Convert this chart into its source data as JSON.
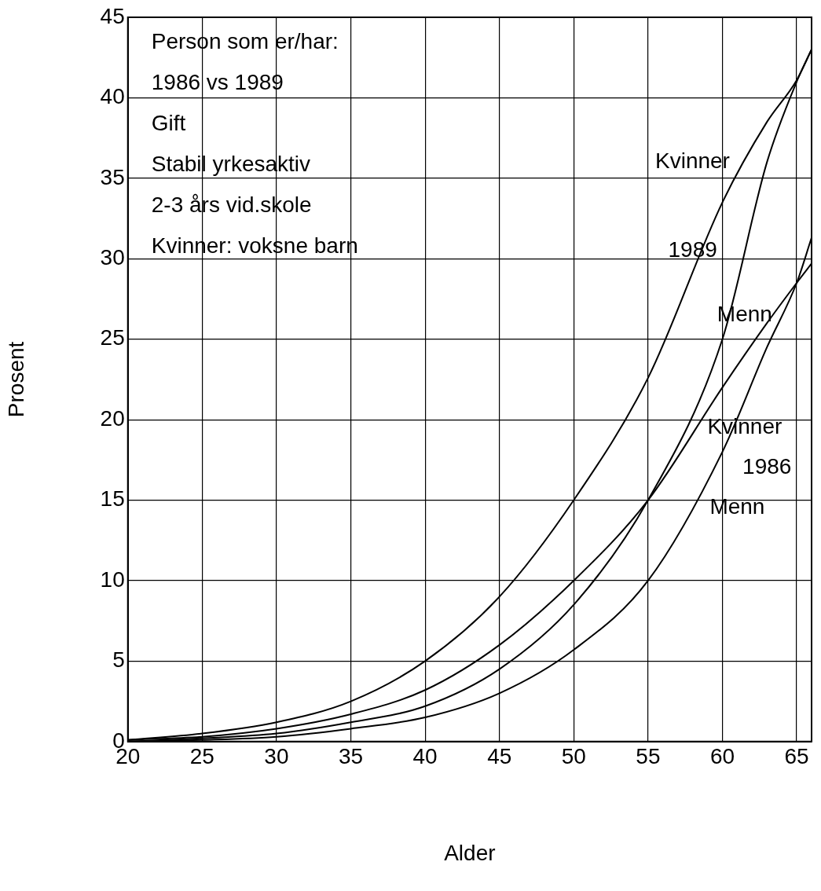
{
  "chart_data": {
    "type": "line",
    "xlabel": "Alder",
    "ylabel": "Prosent",
    "xlim": [
      20,
      66
    ],
    "xticks": [
      20,
      25,
      30,
      35,
      40,
      45,
      50,
      55,
      60,
      65
    ],
    "ylim": [
      0,
      45
    ],
    "yticks": [
      0,
      5,
      10,
      15,
      20,
      25,
      30,
      35,
      40,
      45
    ],
    "grid": true,
    "legend": false,
    "marker": "none",
    "line_style": "solid",
    "x": [
      20,
      25,
      30,
      35,
      40,
      45,
      50,
      55,
      60,
      63,
      65,
      66
    ],
    "series": [
      {
        "color": "#000000",
        "values": [
          0.1,
          0.5,
          1.2,
          2.5,
          5,
          9,
          15,
          22.6,
          33.5,
          38.5,
          41.1,
          43
        ]
      },
      {
        "color": "#000000",
        "values": [
          0,
          0.2,
          0.5,
          1.2,
          2.2,
          4.5,
          8.5,
          15,
          25,
          36,
          41,
          43
        ]
      },
      {
        "color": "#000000",
        "values": [
          0.1,
          0.3,
          0.8,
          1.7,
          3.2,
          6,
          10,
          15,
          22,
          26,
          28.5,
          29.7
        ]
      },
      {
        "color": "#000000",
        "values": [
          0,
          0.1,
          0.3,
          0.8,
          1.5,
          3,
          5.7,
          10,
          18,
          24.5,
          28.5,
          31.3
        ]
      }
    ],
    "annotations": [
      "Person som er/har:",
      "1986 vs 1989",
      "Gift",
      "Stabil yrkesaktiv",
      "2-3 års vid.skole",
      "Kvinner: voksne barn",
      "Kvinner",
      "1989",
      "Menn",
      "Kvinner",
      "1986",
      "Menn"
    ]
  }
}
